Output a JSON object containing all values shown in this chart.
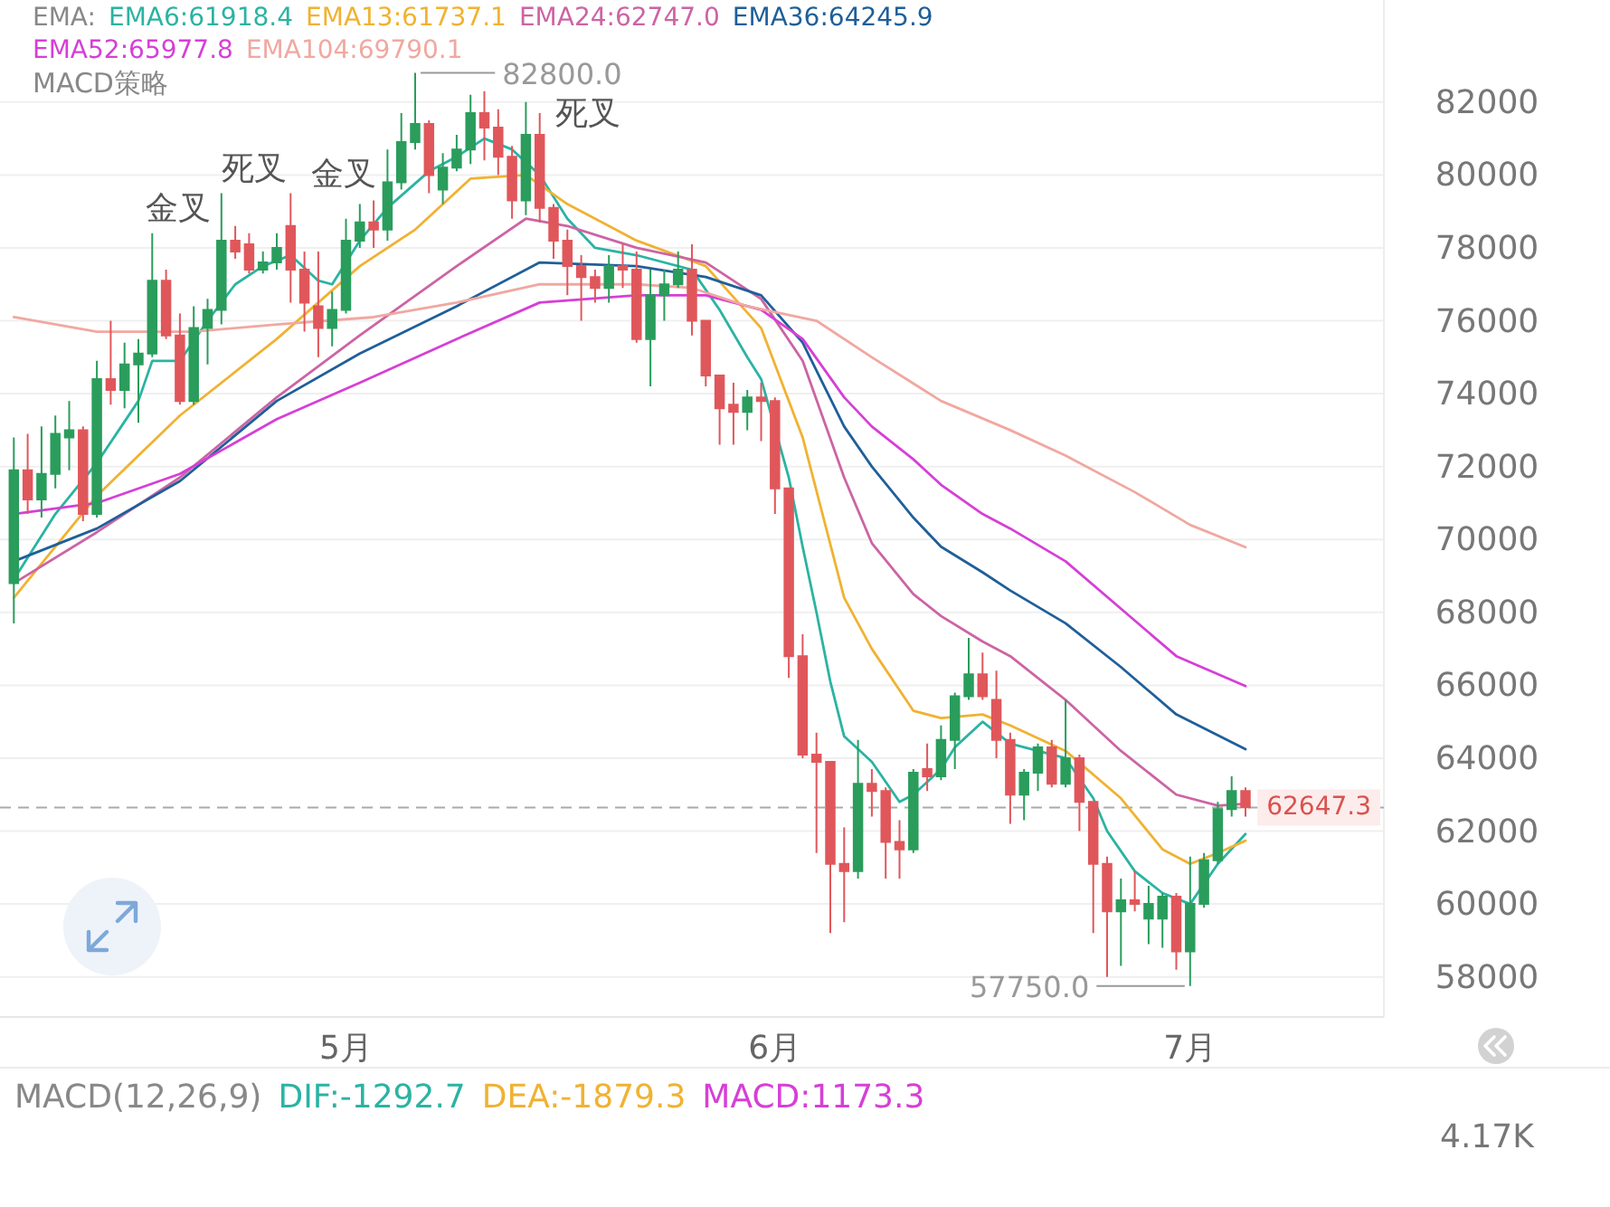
{
  "chart_data": [
    {
      "type": "candlestick",
      "x": [
        "--04-07",
        "--04-08",
        "--04-09",
        "--04-10",
        "--04-11",
        "--04-12",
        "--04-13",
        "--04-14",
        "--04-15",
        "--04-16",
        "--04-17",
        "--04-18",
        "--04-19",
        "--04-20",
        "--04-21",
        "--04-22",
        "--04-23",
        "--04-24",
        "--04-25",
        "--04-26",
        "--04-27",
        "--04-28",
        "--04-29",
        "--04-30",
        "--05-01",
        "--05-02",
        "--05-03",
        "--05-04",
        "--05-05",
        "--05-06",
        "--05-07",
        "--05-08",
        "--05-09",
        "--05-10",
        "--05-11",
        "--05-12",
        "--05-13",
        "--05-14",
        "--05-15",
        "--05-16",
        "--05-17",
        "--05-18",
        "--05-19",
        "--05-20",
        "--05-21",
        "--05-22",
        "--05-23",
        "--05-24",
        "--05-25",
        "--05-26",
        "--05-27",
        "--05-28",
        "--05-29",
        "--05-30",
        "--05-31",
        "--06-01",
        "--06-02",
        "--06-03",
        "--06-04",
        "--06-05",
        "--06-06",
        "--06-07",
        "--06-08",
        "--06-09",
        "--06-10",
        "--06-11",
        "--06-12",
        "--06-13",
        "--06-14",
        "--06-15",
        "--06-16",
        "--06-17",
        "--06-18",
        "--06-19",
        "--06-20",
        "--06-21",
        "--06-22",
        "--06-23",
        "--06-24",
        "--06-25",
        "--06-26",
        "--06-27",
        "--06-28",
        "--06-29",
        "--06-30",
        "--07-01",
        "--07-02",
        "--07-03",
        "--07-04",
        "--07-05"
      ],
      "ohlc": [
        [
          68800,
          72800,
          67700,
          71900
        ],
        [
          71900,
          72900,
          70700,
          71100
        ],
        [
          71100,
          73100,
          70600,
          71800
        ],
        [
          71800,
          73400,
          71400,
          72900
        ],
        [
          72800,
          73800,
          71900,
          73000
        ],
        [
          73000,
          73100,
          70500,
          70700
        ],
        [
          70700,
          74900,
          70600,
          74400
        ],
        [
          74400,
          76000,
          73700,
          74100
        ],
        [
          74100,
          75400,
          73600,
          74800
        ],
        [
          74800,
          75500,
          73200,
          75100
        ],
        [
          75100,
          78400,
          75000,
          77100
        ],
        [
          77100,
          77400,
          75500,
          75600
        ],
        [
          75600,
          76200,
          73700,
          73800
        ],
        [
          73800,
          76400,
          73700,
          75800
        ],
        [
          75800,
          76600,
          74800,
          76300
        ],
        [
          76300,
          79500,
          75900,
          78200
        ],
        [
          78200,
          78600,
          77700,
          77900
        ],
        [
          78100,
          78400,
          77300,
          77400
        ],
        [
          77400,
          77900,
          77300,
          77600
        ],
        [
          77600,
          78400,
          77400,
          78000
        ],
        [
          78600,
          79500,
          76500,
          77400
        ],
        [
          77400,
          77900,
          75700,
          76500
        ],
        [
          76400,
          77900,
          75000,
          75800
        ],
        [
          75800,
          76800,
          75300,
          76300
        ],
        [
          76300,
          78800,
          76200,
          78200
        ],
        [
          78200,
          79200,
          78000,
          78700
        ],
        [
          78700,
          79300,
          78000,
          78500
        ],
        [
          78500,
          80700,
          78200,
          79800
        ],
        [
          79800,
          81700,
          79600,
          80900
        ],
        [
          80900,
          82800,
          80700,
          81400
        ],
        [
          81400,
          81500,
          79500,
          80000
        ],
        [
          79600,
          80600,
          79200,
          80200
        ],
        [
          80200,
          81100,
          80100,
          80700
        ],
        [
          80700,
          82200,
          80300,
          81700
        ],
        [
          81700,
          82300,
          80400,
          81300
        ],
        [
          81300,
          81800,
          80000,
          80500
        ],
        [
          80500,
          80800,
          78800,
          79300
        ],
        [
          79300,
          82000,
          78900,
          81100
        ],
        [
          81100,
          81700,
          78700,
          79100
        ],
        [
          79100,
          79200,
          77700,
          78200
        ],
        [
          78200,
          78500,
          76700,
          77500
        ],
        [
          77500,
          77800,
          76000,
          77200
        ],
        [
          77200,
          77400,
          76500,
          76900
        ],
        [
          76900,
          77800,
          76500,
          77500
        ],
        [
          77500,
          78100,
          76900,
          77400
        ],
        [
          77400,
          77900,
          75400,
          75500
        ],
        [
          75500,
          77400,
          74200,
          76700
        ],
        [
          76700,
          77400,
          76000,
          77000
        ],
        [
          77000,
          77900,
          76900,
          77400
        ],
        [
          77400,
          78100,
          75600,
          76000
        ],
        [
          76000,
          76000,
          74200,
          74500
        ],
        [
          74500,
          74500,
          72600,
          73600
        ],
        [
          73700,
          74300,
          72600,
          73500
        ],
        [
          73500,
          74100,
          73000,
          73900
        ],
        [
          73900,
          74300,
          72700,
          73800
        ],
        [
          73800,
          73900,
          70700,
          71400
        ],
        [
          71400,
          71400,
          66200,
          66800
        ],
        [
          66800,
          67400,
          64000,
          64100
        ],
        [
          64100,
          64700,
          61400,
          63900
        ],
        [
          63900,
          63900,
          59200,
          61100
        ],
        [
          61100,
          62100,
          59500,
          60900
        ],
        [
          60900,
          64500,
          60700,
          63300
        ],
        [
          63300,
          63700,
          62400,
          63100
        ],
        [
          63100,
          63200,
          60700,
          61700
        ],
        [
          61700,
          62300,
          60700,
          61500
        ],
        [
          61500,
          63700,
          61400,
          63600
        ],
        [
          63700,
          64400,
          63100,
          63500
        ],
        [
          63500,
          64900,
          63400,
          64500
        ],
        [
          64500,
          65800,
          63700,
          65700
        ],
        [
          65700,
          67300,
          65600,
          66300
        ],
        [
          66300,
          66900,
          65600,
          65700
        ],
        [
          65600,
          66400,
          64000,
          64500
        ],
        [
          64500,
          64700,
          62200,
          63000
        ],
        [
          63000,
          63700,
          62300,
          63600
        ],
        [
          63600,
          64400,
          63100,
          64300
        ],
        [
          64300,
          64500,
          63200,
          63300
        ],
        [
          63300,
          65600,
          63200,
          64000
        ],
        [
          64000,
          64100,
          62000,
          62800
        ],
        [
          62800,
          62800,
          59200,
          61100
        ],
        [
          61100,
          61300,
          58000,
          59800
        ],
        [
          59800,
          60700,
          58300,
          60100
        ],
        [
          60100,
          60900,
          59800,
          60000
        ],
        [
          59600,
          60500,
          58900,
          60000
        ],
        [
          59600,
          60300,
          58800,
          60200
        ],
        [
          60200,
          60300,
          58200,
          58700
        ],
        [
          58700,
          61300,
          57750,
          60000
        ],
        [
          60000,
          61400,
          59900,
          61200
        ],
        [
          61200,
          62800,
          61100,
          62600
        ],
        [
          62600,
          63500,
          62400,
          63100
        ],
        [
          63100,
          63200,
          62400,
          62650
        ]
      ],
      "colors": [
        "#2a9d5c",
        "#e0575b",
        "#2a9d5c",
        "#2a9d5c",
        "#2a9d5c",
        "#e0575b",
        "#2a9d5c",
        "#e0575b",
        "#2a9d5c",
        "#2a9d5c",
        "#2a9d5c",
        "#e0575b",
        "#e0575b",
        "#2a9d5c",
        "#2a9d5c",
        "#2a9d5c",
        "#e0575b",
        "#e0575b",
        "#2a9d5c",
        "#2a9d5c",
        "#e0575b",
        "#e0575b",
        "#e0575b",
        "#2a9d5c",
        "#2a9d5c",
        "#2a9d5c",
        "#e0575b",
        "#2a9d5c",
        "#2a9d5c",
        "#2a9d5c",
        "#e0575b",
        "#2a9d5c",
        "#2a9d5c",
        "#2a9d5c",
        "#e0575b",
        "#e0575b",
        "#e0575b",
        "#2a9d5c",
        "#e0575b",
        "#e0575b",
        "#e0575b",
        "#e0575b",
        "#e0575b",
        "#2a9d5c",
        "#e0575b",
        "#e0575b",
        "#2a9d5c",
        "#2a9d5c",
        "#2a9d5c",
        "#e0575b",
        "#e0575b",
        "#e0575b",
        "#e0575b",
        "#2a9d5c",
        "#e0575b",
        "#e0575b",
        "#e0575b",
        "#e0575b",
        "#e0575b",
        "#e0575b",
        "#e0575b",
        "#2a9d5c",
        "#e0575b",
        "#e0575b",
        "#e0575b",
        "#2a9d5c",
        "#e0575b",
        "#2a9d5c",
        "#2a9d5c",
        "#2a9d5c",
        "#e0575b",
        "#e0575b",
        "#e0575b",
        "#2a9d5c",
        "#2a9d5c",
        "#e0575b",
        "#2a9d5c",
        "#e0575b",
        "#e0575b",
        "#e0575b",
        "#2a9d5c",
        "#e0575b",
        "#2a9d5c",
        "#2a9d5c",
        "#e0575b",
        "#2a9d5c",
        "#2a9d5c",
        "#2a9d5c",
        "#2a9d5c",
        "#e0575b"
      ],
      "series": [
        {
          "type": "line",
          "name": "EMA6:61918.4",
          "color": "#2bb3a3",
          "x": [
            "--04-07",
            "--04-10",
            "--04-13",
            "--04-16",
            "--04-17",
            "--04-19",
            "--04-21",
            "--04-23",
            "--04-25",
            "--04-27",
            "--04-29",
            "--04-30",
            "--05-02",
            "--05-04",
            "--05-07",
            "--05-09",
            "--05-11",
            "--05-13",
            "--05-15",
            "--05-17",
            "--05-19",
            "--05-22",
            "--05-26",
            "--05-28",
            "--05-30",
            "--05-31",
            "--06-02",
            "--06-03",
            "--06-04",
            "--06-05",
            "--06-06",
            "--06-08",
            "--06-10",
            "--06-11",
            "--06-13",
            "--06-14",
            "--06-16",
            "--06-18",
            "--06-20",
            "--06-22",
            "--06-24",
            "--06-25",
            "--06-27",
            "--06-29",
            "--07-01",
            "--07-03",
            "--07-05"
          ],
          "values": [
            68900,
            70700,
            72100,
            73800,
            74900,
            74900,
            76000,
            77000,
            77500,
            77800,
            77100,
            77000,
            78200,
            79100,
            80100,
            80500,
            81000,
            80700,
            80000,
            78800,
            78000,
            77800,
            77400,
            76300,
            75000,
            74400,
            71700,
            69800,
            68000,
            66100,
            64600,
            63900,
            62800,
            63000,
            63700,
            64300,
            65000,
            64400,
            64200,
            64000,
            62900,
            62000,
            60900,
            60300,
            60000,
            61100,
            61918.4
          ]
        },
        {
          "type": "line",
          "name": "EMA13:61737.1",
          "color": "#f0b232",
          "x": [
            "--04-07",
            "--04-13",
            "--04-19",
            "--04-26",
            "--05-02",
            "--05-06",
            "--05-10",
            "--05-14",
            "--05-17",
            "--05-22",
            "--05-27",
            "--05-31",
            "--06-03",
            "--06-06",
            "--06-08",
            "--06-11",
            "--06-13",
            "--06-16",
            "--06-18",
            "--06-22",
            "--06-26",
            "--06-29",
            "--07-01",
            "--07-03",
            "--07-05"
          ],
          "values": [
            68400,
            71200,
            73400,
            75500,
            77500,
            78500,
            79900,
            80000,
            79200,
            78200,
            77500,
            75800,
            72800,
            68400,
            67000,
            65300,
            65100,
            65200,
            64900,
            64200,
            62900,
            61500,
            61100,
            61400,
            61737.1
          ]
        },
        {
          "type": "line",
          "name": "EMA24:62747.0",
          "color": "#cc64a4",
          "x": [
            "--04-07",
            "--04-13",
            "--04-19",
            "--04-26",
            "--05-02",
            "--05-09",
            "--05-14",
            "--05-17",
            "--05-22",
            "--05-27",
            "--05-31",
            "--06-03",
            "--06-06",
            "--06-08",
            "--06-11",
            "--06-13",
            "--06-16",
            "--06-18",
            "--06-22",
            "--06-26",
            "--06-30",
            "--07-03",
            "--07-05"
          ],
          "values": [
            68800,
            70200,
            71700,
            73900,
            75600,
            77500,
            78800,
            78600,
            78000,
            77600,
            76600,
            74900,
            71700,
            69900,
            68500,
            67900,
            67200,
            66800,
            65600,
            64200,
            63000,
            62700,
            62747.0
          ]
        },
        {
          "type": "line",
          "name": "EMA36:64245.9",
          "color": "#1f5f99",
          "x": [
            "--04-07",
            "--04-13",
            "--04-19",
            "--04-26",
            "--05-02",
            "--05-09",
            "--05-15",
            "--05-22",
            "--05-27",
            "--05-31",
            "--06-03",
            "--06-06",
            "--06-08",
            "--06-11",
            "--06-13",
            "--06-16",
            "--06-18",
            "--06-22",
            "--06-26",
            "--06-30",
            "--07-05"
          ],
          "values": [
            69400,
            70300,
            71600,
            73800,
            75100,
            76400,
            77600,
            77500,
            77200,
            76700,
            75400,
            73100,
            72000,
            70600,
            69800,
            69100,
            68600,
            67700,
            66500,
            65200,
            64245.9
          ]
        },
        {
          "type": "line",
          "name": "EMA52:65977.8",
          "color": "#d63fd6",
          "x": [
            "--04-07",
            "--04-13",
            "--04-19",
            "--04-26",
            "--05-02",
            "--05-09",
            "--05-15",
            "--05-22",
            "--05-27",
            "--05-31",
            "--06-03",
            "--06-06",
            "--06-08",
            "--06-11",
            "--06-13",
            "--06-16",
            "--06-18",
            "--06-22",
            "--06-26",
            "--06-30",
            "--07-05"
          ],
          "values": [
            70700,
            71000,
            71800,
            73300,
            74300,
            75500,
            76500,
            76700,
            76700,
            76300,
            75500,
            73900,
            73100,
            72200,
            71500,
            70700,
            70300,
            69400,
            68100,
            66800,
            65977.8
          ]
        },
        {
          "type": "line",
          "name": "EMA104:69790.1",
          "color": "#f0a8a0",
          "x": [
            "--04-07",
            "--04-13",
            "--04-20",
            "--04-26",
            "--05-03",
            "--05-09",
            "--05-15",
            "--05-22",
            "--05-26",
            "--05-30",
            "--06-04",
            "--06-08",
            "--06-13",
            "--06-18",
            "--06-22",
            "--06-27",
            "--07-01",
            "--07-05"
          ],
          "values": [
            76100,
            75700,
            75700,
            75900,
            76100,
            76500,
            77000,
            77000,
            76900,
            76400,
            76000,
            75000,
            73800,
            73000,
            72300,
            71300,
            70400,
            69790.1
          ]
        }
      ],
      "xlim": [
        "--04-06",
        "--07-15"
      ],
      "xticks": [
        {
          "value": "--05-01",
          "label": "5月"
        },
        {
          "value": "--06-01",
          "label": "6月"
        },
        {
          "value": "--07-01",
          "label": "7月"
        }
      ],
      "ylim": [
        56900,
        84800
      ],
      "yticks": [
        58000,
        60000,
        62000,
        64000,
        66000,
        68000,
        70000,
        72000,
        74000,
        76000,
        78000,
        80000,
        82000
      ],
      "grid": "y",
      "legend": "top left",
      "legend_title": "EMA:",
      "ref_lines": [
        {
          "axis": "y",
          "value": 62647.3,
          "label": "62647.3",
          "color": "#aaaaaa",
          "line_style": "dashed"
        }
      ],
      "annotations": [
        "MACD策略",
        {
          "text": "82800.0",
          "x": "--05-06",
          "y": 82800
        },
        {
          "text": "57750.0",
          "x": "--07-01",
          "y": 57750
        },
        {
          "text": "金叉",
          "x": "--04-22",
          "y": 77000
        },
        {
          "text": "死叉",
          "x": "--04-24",
          "y": 78400
        },
        {
          "text": "金叉",
          "x": "--05-02",
          "y": 77500
        },
        {
          "text": "死叉",
          "x": "--05-11",
          "y": 81700
        }
      ]
    },
    {
      "type": "other",
      "title": "MACD(12,26,9)",
      "series": [
        {
          "name": "DIF:-1292.7",
          "color": "#2bb3a3"
        },
        {
          "name": "DEA:-1879.3",
          "color": "#f0b232"
        },
        {
          "name": "MACD:1173.3",
          "color": "#d63fd6"
        }
      ],
      "annotations": [
        "4.17K"
      ]
    }
  ]
}
